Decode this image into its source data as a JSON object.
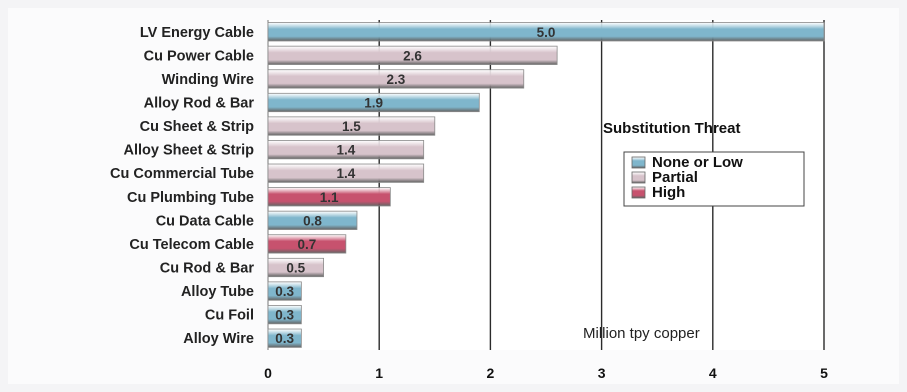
{
  "chart_data": {
    "type": "bar",
    "orientation": "horizontal",
    "categories": [
      "LV Energy Cable",
      "Cu Power Cable",
      "Winding Wire",
      "Alloy Rod & Bar",
      "Cu Sheet & Strip",
      "Alloy Sheet & Strip",
      "Cu Commercial Tube",
      "Cu Plumbing Tube",
      "Cu Data Cable",
      "Cu Telecom Cable",
      "Cu Rod & Bar",
      "Alloy Tube",
      "Cu Foil",
      "Alloy Wire"
    ],
    "values": [
      5.0,
      2.6,
      2.3,
      1.9,
      1.5,
      1.4,
      1.4,
      1.1,
      0.8,
      0.7,
      0.5,
      0.3,
      0.3,
      0.3
    ],
    "value_labels": [
      "5.0",
      "2.6",
      "2.3",
      "1.9",
      "1.5",
      "1.4",
      "1.4",
      "1.1",
      "0.8",
      "0.7",
      "0.5",
      "0.3",
      "0.3",
      "0.3"
    ],
    "threat": [
      "None or Low",
      "Partial",
      "Partial",
      "None or Low",
      "Partial",
      "Partial",
      "Partial",
      "High",
      "None or Low",
      "High",
      "Partial",
      "None or Low",
      "None or Low",
      "None or Low"
    ],
    "xlim": [
      0,
      5
    ],
    "xticks": [
      "0",
      "1",
      "2",
      "3",
      "4",
      "5"
    ],
    "grid": true,
    "legend": {
      "title": "Substitution Threat",
      "position": "right",
      "entries": [
        "None or Low",
        "Partial",
        "High"
      ]
    },
    "annotation": "Million tpy copper",
    "colors": {
      "None or Low": "#7fb6cc",
      "Partial": "#d7c3cb",
      "High": "#c7526e",
      "plot_background": "#ffffff",
      "gridline": "#2b2b2b"
    }
  }
}
